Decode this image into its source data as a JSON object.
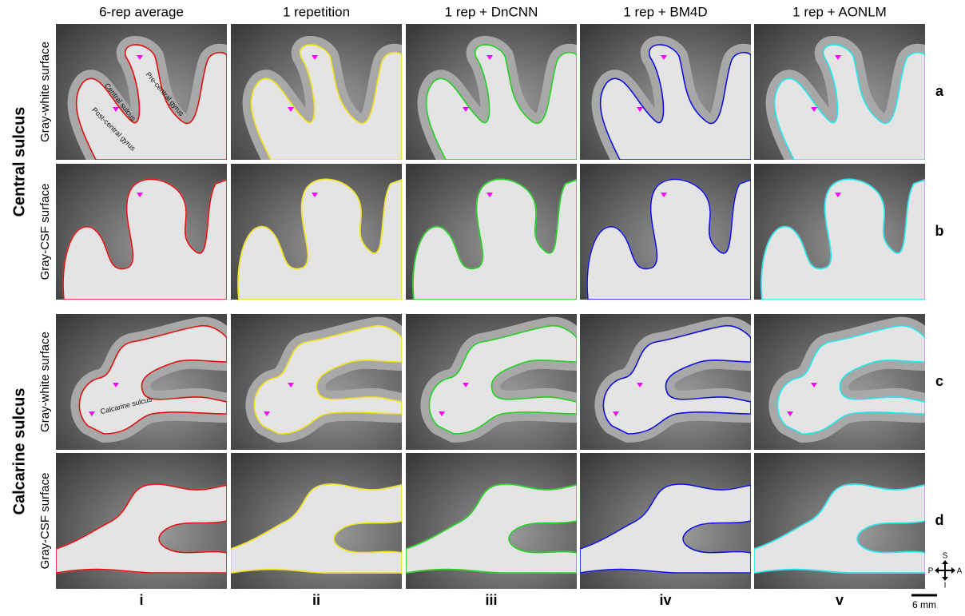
{
  "columns": [
    {
      "header": "6-rep average",
      "numeral": "i",
      "color": "#e01010"
    },
    {
      "header": "1 repetition",
      "numeral": "ii",
      "color": "#f2e21a"
    },
    {
      "header": "1 rep + DnCNN",
      "numeral": "iii",
      "color": "#22d022"
    },
    {
      "header": "1 rep + BM4D",
      "numeral": "iv",
      "color": "#1010e0"
    },
    {
      "header": "1 rep + AONLM",
      "numeral": "v",
      "color": "#22e8ee"
    }
  ],
  "groups": [
    {
      "label": "Central sulcus",
      "rows": [
        {
          "label": "Gray-white surface",
          "letter": "a"
        },
        {
          "label": "Gray-CSF surface",
          "letter": "b"
        }
      ]
    },
    {
      "label": "Calcarine sulcus",
      "rows": [
        {
          "label": "Gray-white surface",
          "letter": "c"
        },
        {
          "label": "Gray-CSF surface",
          "letter": "d"
        }
      ]
    }
  ],
  "annotations": [
    "Central sulcus",
    "Pre-central gyrus",
    "Post-central gyrus",
    "Calcarine sulcus"
  ],
  "scale_bar": "6 mm",
  "orientation": {
    "superior": "S",
    "inferior": "I",
    "posterior": "P",
    "anterior": "A"
  }
}
